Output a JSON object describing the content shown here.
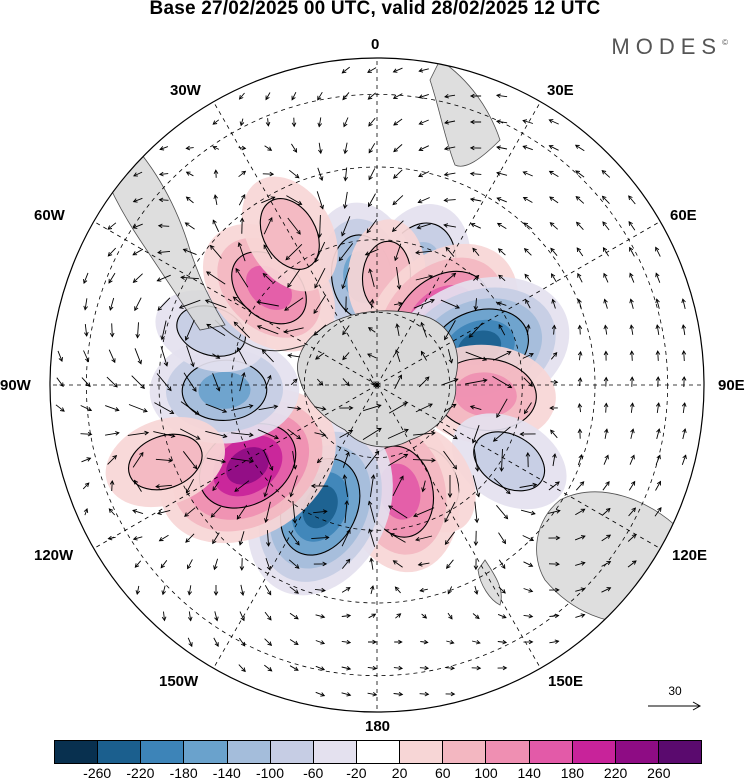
{
  "title": "Base 27/02/2025 00 UTC, valid 28/02/2025 12 UTC",
  "brand": "MODES",
  "brand_mark": "©",
  "longitude_labels": {
    "n0": "0",
    "n30e": "30E",
    "n60e": "60E",
    "n90e": "90E",
    "n120e": "120E",
    "n150e": "150E",
    "n180": "180",
    "n150w": "150W",
    "n120w": "120W",
    "n90w": "90W",
    "n60w": "60W",
    "n30w": "30W"
  },
  "colorbar": {
    "colors": [
      "#08304f",
      "#1b5f8e",
      "#3d84b8",
      "#6aa2cc",
      "#a4bddb",
      "#c6cde4",
      "#e4e1ef",
      "#ffffff",
      "#f7d6d6",
      "#f3b7c1",
      "#ef8fb2",
      "#e35aa8",
      "#c8239a",
      "#8e0c84",
      "#5a0a6e"
    ],
    "tick_labels": [
      "-260",
      "-220",
      "-180",
      "-140",
      "-100",
      "-60",
      "-20",
      "20",
      "60",
      "100",
      "140",
      "180",
      "220",
      "260"
    ]
  },
  "reference_vector": {
    "label": "30"
  },
  "anomalies": [
    {
      "id": "neg-north-1",
      "lon": 20,
      "colat": 33,
      "value": -120
    },
    {
      "id": "neg-north-2",
      "lon": -8,
      "colat": 30,
      "value": -140
    },
    {
      "id": "pos-north-1",
      "lon": 5,
      "colat": 30,
      "value": 60
    },
    {
      "id": "pos-ne-1",
      "lon": 45,
      "colat": 25,
      "value": 200
    },
    {
      "id": "neg-east-1",
      "lon": 70,
      "colat": 30,
      "value": -220
    },
    {
      "id": "pos-east-1",
      "lon": 95,
      "colat": 30,
      "value": 120
    },
    {
      "id": "neg-se-1",
      "lon": 120,
      "colat": 42,
      "value": -80
    },
    {
      "id": "pos-se-1",
      "lon": 150,
      "colat": 30,
      "value": 60
    },
    {
      "id": "pos-south-1",
      "lon": 168,
      "colat": 30,
      "value": 170
    },
    {
      "id": "neg-south-1",
      "lon": -155,
      "colat": 37,
      "value": -220
    },
    {
      "id": "pos-sw-1",
      "lon": -122,
      "colat": 42,
      "value": 230
    },
    {
      "id": "neg-west-1",
      "lon": -92,
      "colat": 42,
      "value": -140
    },
    {
      "id": "neg-west-2",
      "lon": -72,
      "colat": 48,
      "value": -60
    },
    {
      "id": "pos-nw-1",
      "lon": -48,
      "colat": 40,
      "value": 140
    },
    {
      "id": "pos-nw-2",
      "lon": -30,
      "colat": 48,
      "value": 80
    },
    {
      "id": "pos-west-3",
      "lon": -110,
      "colat": 62,
      "value": 80
    }
  ]
}
